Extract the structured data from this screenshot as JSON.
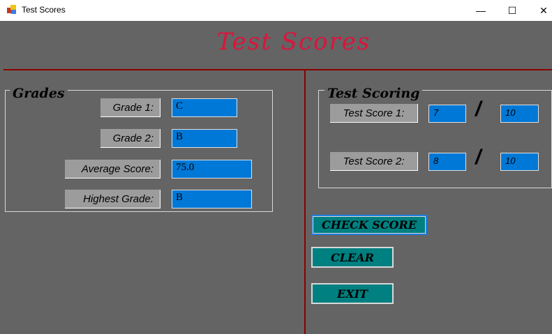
{
  "window": {
    "title": "Test Scores",
    "controls": {
      "minimize": "—",
      "maximize": "☐",
      "close": "✕"
    }
  },
  "header": {
    "title": "Test Scores"
  },
  "grades": {
    "legend": "Grades",
    "grade1": {
      "label": "Grade 1:",
      "value": "C"
    },
    "grade2": {
      "label": "Grade 2:",
      "value": "B"
    },
    "average": {
      "label": "Average Score:",
      "value": "75.0"
    },
    "highest": {
      "label": "Highest Grade:",
      "value": "B"
    }
  },
  "scoring": {
    "legend": "Test Scoring",
    "score1": {
      "label": "Test Score 1:",
      "value": "7",
      "max": "10"
    },
    "score2": {
      "label": "Test Score 2:",
      "value": "8",
      "max": "10"
    },
    "separator": "/"
  },
  "buttons": {
    "check": "CHECK SCORE",
    "clear": "CLEAR",
    "exit": "EXIT"
  },
  "colors": {
    "background": "#646464",
    "title": "#dc143c",
    "divider": "#8b0000",
    "textbox": "#0078d7",
    "button": "#008080"
  }
}
